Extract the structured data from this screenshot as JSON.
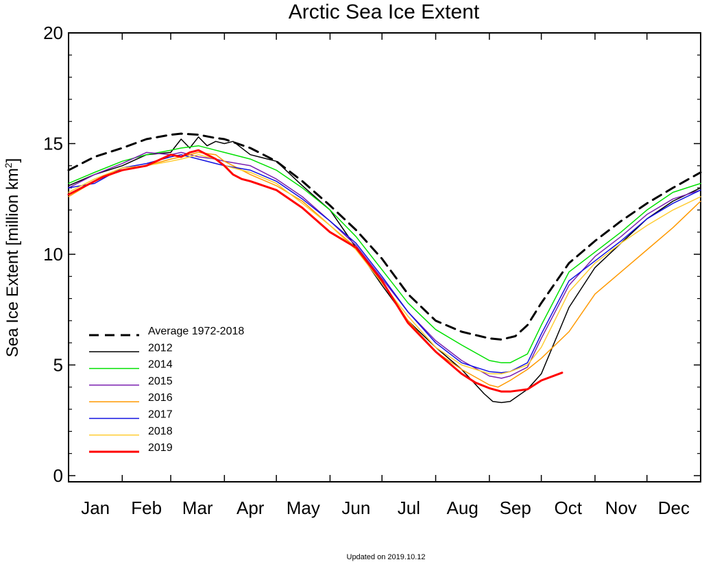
{
  "chart_data": {
    "type": "line",
    "title": "Arctic Sea Ice Extent",
    "ylabel": "Sea Ice Extent [million km",
    "ylabel_sup": "2",
    "ylabel_close": "]",
    "xlabel": "",
    "xlim": [
      0,
      365
    ],
    "ylim": [
      0,
      20
    ],
    "yticks": [
      0,
      5,
      10,
      15,
      20
    ],
    "months": [
      "Jan",
      "Feb",
      "Mar",
      "Apr",
      "May",
      "Jun",
      "Jul",
      "Aug",
      "Sep",
      "Oct",
      "Nov",
      "Dec"
    ],
    "month_starts": [
      0,
      31,
      59,
      90,
      120,
      151,
      181,
      212,
      243,
      273,
      304,
      334,
      365
    ],
    "grid": false,
    "legend_position": "lower-left",
    "series": [
      {
        "name": "Average 1972-2018",
        "color": "#000000",
        "dashed": true,
        "width": 3,
        "x": [
          0,
          15,
          31,
          45,
          59,
          65,
          75,
          85,
          90,
          105,
          120,
          135,
          151,
          166,
          181,
          196,
          212,
          227,
          243,
          250,
          258,
          265,
          273,
          289,
          304,
          319,
          334,
          349,
          365
        ],
        "y": [
          13.8,
          14.4,
          14.8,
          15.2,
          15.4,
          15.45,
          15.4,
          15.25,
          15.2,
          14.8,
          14.2,
          13.3,
          12.2,
          11.1,
          9.8,
          8.2,
          7.0,
          6.5,
          6.2,
          6.15,
          6.3,
          6.8,
          7.8,
          9.6,
          10.6,
          11.5,
          12.3,
          13.0,
          13.7
        ]
      },
      {
        "name": "2012",
        "color": "#000000",
        "dashed": false,
        "width": 1.5,
        "x": [
          0,
          15,
          31,
          45,
          59,
          65,
          70,
          75,
          80,
          85,
          90,
          95,
          105,
          120,
          135,
          151,
          166,
          181,
          196,
          212,
          227,
          240,
          245,
          250,
          255,
          265,
          273,
          289,
          304,
          319,
          334,
          349,
          365
        ],
        "y": [
          13.1,
          13.6,
          14.0,
          14.5,
          14.6,
          15.2,
          14.8,
          15.3,
          14.9,
          15.1,
          15.0,
          15.1,
          14.5,
          14.2,
          13.1,
          12.0,
          10.3,
          8.6,
          7.0,
          5.8,
          4.8,
          3.7,
          3.35,
          3.3,
          3.35,
          3.9,
          4.6,
          7.6,
          9.4,
          10.5,
          11.6,
          12.4,
          13.0
        ]
      },
      {
        "name": "2014",
        "color": "#00e000",
        "dashed": false,
        "width": 1.5,
        "x": [
          0,
          15,
          31,
          45,
          59,
          65,
          75,
          85,
          90,
          105,
          120,
          135,
          151,
          166,
          181,
          196,
          212,
          227,
          243,
          250,
          255,
          265,
          273,
          289,
          304,
          319,
          334,
          349,
          365
        ],
        "y": [
          13.2,
          13.7,
          14.2,
          14.5,
          14.7,
          14.8,
          14.9,
          14.7,
          14.6,
          14.3,
          13.8,
          13.0,
          12.0,
          10.8,
          9.3,
          7.8,
          6.6,
          5.9,
          5.2,
          5.1,
          5.1,
          5.5,
          6.8,
          9.2,
          10.1,
          11.0,
          12.0,
          12.8,
          13.2
        ]
      },
      {
        "name": "2015",
        "color": "#7a1fb0",
        "dashed": false,
        "width": 1.5,
        "x": [
          0,
          15,
          31,
          45,
          59,
          65,
          75,
          85,
          90,
          105,
          120,
          135,
          151,
          166,
          181,
          196,
          212,
          227,
          243,
          250,
          255,
          265,
          273,
          289,
          304,
          319,
          334,
          349,
          365
        ],
        "y": [
          13.0,
          13.6,
          14.1,
          14.6,
          14.5,
          14.6,
          14.4,
          14.3,
          14.2,
          14.0,
          13.4,
          12.6,
          11.5,
          10.4,
          8.9,
          7.4,
          6.1,
          5.2,
          4.5,
          4.4,
          4.5,
          4.9,
          6.2,
          8.6,
          9.9,
          10.8,
          11.8,
          12.5,
          12.9
        ]
      },
      {
        "name": "2016",
        "color": "#ff9900",
        "dashed": false,
        "width": 1.5,
        "x": [
          0,
          15,
          31,
          45,
          59,
          65,
          75,
          85,
          90,
          105,
          120,
          135,
          151,
          166,
          181,
          196,
          212,
          227,
          243,
          248,
          255,
          265,
          273,
          289,
          304,
          319,
          334,
          349,
          365
        ],
        "y": [
          12.6,
          13.3,
          13.8,
          14.0,
          14.3,
          14.4,
          14.6,
          14.5,
          14.2,
          13.6,
          13.1,
          12.4,
          11.3,
          10.3,
          8.8,
          7.0,
          5.6,
          4.8,
          4.1,
          4.0,
          4.3,
          4.8,
          5.3,
          6.5,
          8.2,
          9.2,
          10.2,
          11.2,
          12.4
        ]
      },
      {
        "name": "2017",
        "color": "#1010e0",
        "dashed": false,
        "width": 1.5,
        "x": [
          0,
          15,
          31,
          45,
          59,
          65,
          75,
          85,
          90,
          105,
          120,
          135,
          151,
          166,
          181,
          196,
          212,
          227,
          243,
          250,
          255,
          265,
          273,
          289,
          304,
          319,
          334,
          349,
          365
        ],
        "y": [
          13.0,
          13.2,
          13.9,
          14.1,
          14.4,
          14.5,
          14.3,
          14.1,
          14.0,
          13.8,
          13.3,
          12.5,
          11.5,
          10.5,
          9.0,
          7.4,
          6.0,
          5.1,
          4.7,
          4.65,
          4.7,
          5.1,
          6.4,
          8.8,
          9.7,
          10.6,
          11.6,
          12.3,
          12.9
        ]
      },
      {
        "name": "2018",
        "color": "#ffcc33",
        "dashed": false,
        "width": 1.5,
        "x": [
          0,
          15,
          31,
          45,
          59,
          65,
          75,
          85,
          90,
          105,
          120,
          135,
          151,
          166,
          181,
          196,
          212,
          227,
          243,
          250,
          255,
          265,
          273,
          289,
          304,
          319,
          334,
          349,
          365
        ],
        "y": [
          12.8,
          13.4,
          13.9,
          14.0,
          14.2,
          14.3,
          14.5,
          14.3,
          14.0,
          13.7,
          13.2,
          12.3,
          11.3,
          10.2,
          8.7,
          7.2,
          5.8,
          5.0,
          4.6,
          4.6,
          4.7,
          5.0,
          5.8,
          8.3,
          9.6,
          10.5,
          11.3,
          12.0,
          12.6
        ]
      },
      {
        "name": "2019",
        "color": "#ff0000",
        "dashed": false,
        "width": 3,
        "x": [
          0,
          10,
          20,
          31,
          45,
          59,
          65,
          70,
          75,
          80,
          85,
          90,
          95,
          100,
          105,
          120,
          135,
          151,
          166,
          181,
          196,
          212,
          227,
          235,
          243,
          250,
          255,
          265,
          273,
          285
        ],
        "y": [
          12.7,
          13.1,
          13.5,
          13.8,
          14.0,
          14.5,
          14.4,
          14.6,
          14.7,
          14.5,
          14.3,
          14.0,
          13.6,
          13.4,
          13.3,
          12.9,
          12.1,
          11.0,
          10.3,
          8.8,
          6.9,
          5.6,
          4.6,
          4.2,
          3.95,
          3.8,
          3.8,
          3.9,
          4.3,
          4.65
        ]
      }
    ],
    "footer": "Updated on 2019.10.12"
  }
}
